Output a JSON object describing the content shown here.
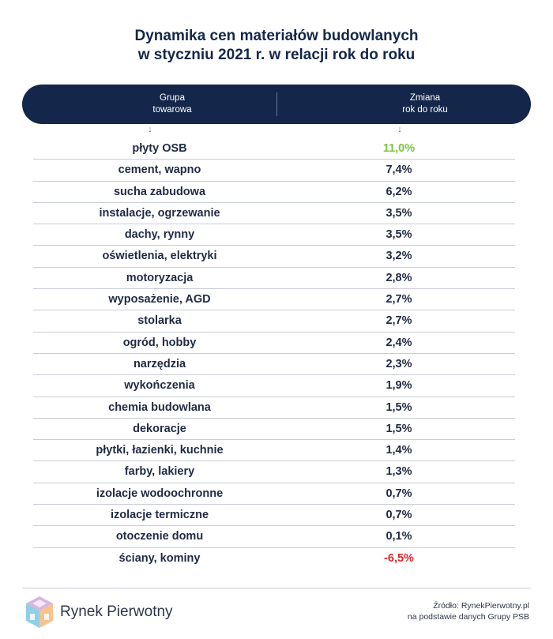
{
  "title": {
    "line1": "Dynamika cen materiałów budowlanych",
    "line2": "w styczniu 2021 r. w relacji rok do roku"
  },
  "header": {
    "left_line1": "Grupa",
    "left_line2": "towarowa",
    "right_line1": "Zmiana",
    "right_line2": "rok do roku",
    "arrow": "↓"
  },
  "colors": {
    "navy": "#14274a",
    "positive_highlight": "#7cc242",
    "negative_highlight": "#e3262b",
    "default_text": "#1f2a44"
  },
  "chart_data": {
    "type": "table",
    "columns": [
      "Grupa towarowa",
      "Zmiana rok do roku"
    ],
    "rows": [
      {
        "name": "płyty OSB",
        "value": "11,0%",
        "highlight": "positive"
      },
      {
        "name": "cement, wapno",
        "value": "7,4%"
      },
      {
        "name": "sucha zabudowa",
        "value": "6,2%"
      },
      {
        "name": "instalacje, ogrzewanie",
        "value": "3,5%"
      },
      {
        "name": "dachy, rynny",
        "value": "3,5%"
      },
      {
        "name": "oświetlenia, elektryki",
        "value": "3,2%"
      },
      {
        "name": "motoryzacja",
        "value": "2,8%"
      },
      {
        "name": "wyposażenie, AGD",
        "value": "2,7%"
      },
      {
        "name": "stolarka",
        "value": "2,7%"
      },
      {
        "name": "ogród, hobby",
        "value": "2,4%"
      },
      {
        "name": "narzędzia",
        "value": "2,3%"
      },
      {
        "name": "wykończenia",
        "value": "1,9%"
      },
      {
        "name": "chemia budowlana",
        "value": "1,5%"
      },
      {
        "name": "dekoracje",
        "value": "1,5%"
      },
      {
        "name": "płytki, łazienki, kuchnie",
        "value": "1,4%"
      },
      {
        "name": "farby, lakiery",
        "value": "1,3%"
      },
      {
        "name": "izolacje wodoochronne",
        "value": "0,7%"
      },
      {
        "name": "izolacje termiczne",
        "value": "0,7%"
      },
      {
        "name": "otoczenie domu",
        "value": "0,1%"
      },
      {
        "name": "ściany, kominy",
        "value": "-6,5%",
        "highlight": "negative"
      }
    ]
  },
  "footer": {
    "brand": "Rynek Pierwotny",
    "source_line1": "Źródło: RynekPierwotny.pl",
    "source_line2": "na podstawie danych Grupy PSB",
    "logo_icon": "cube-house-logo-icon"
  }
}
